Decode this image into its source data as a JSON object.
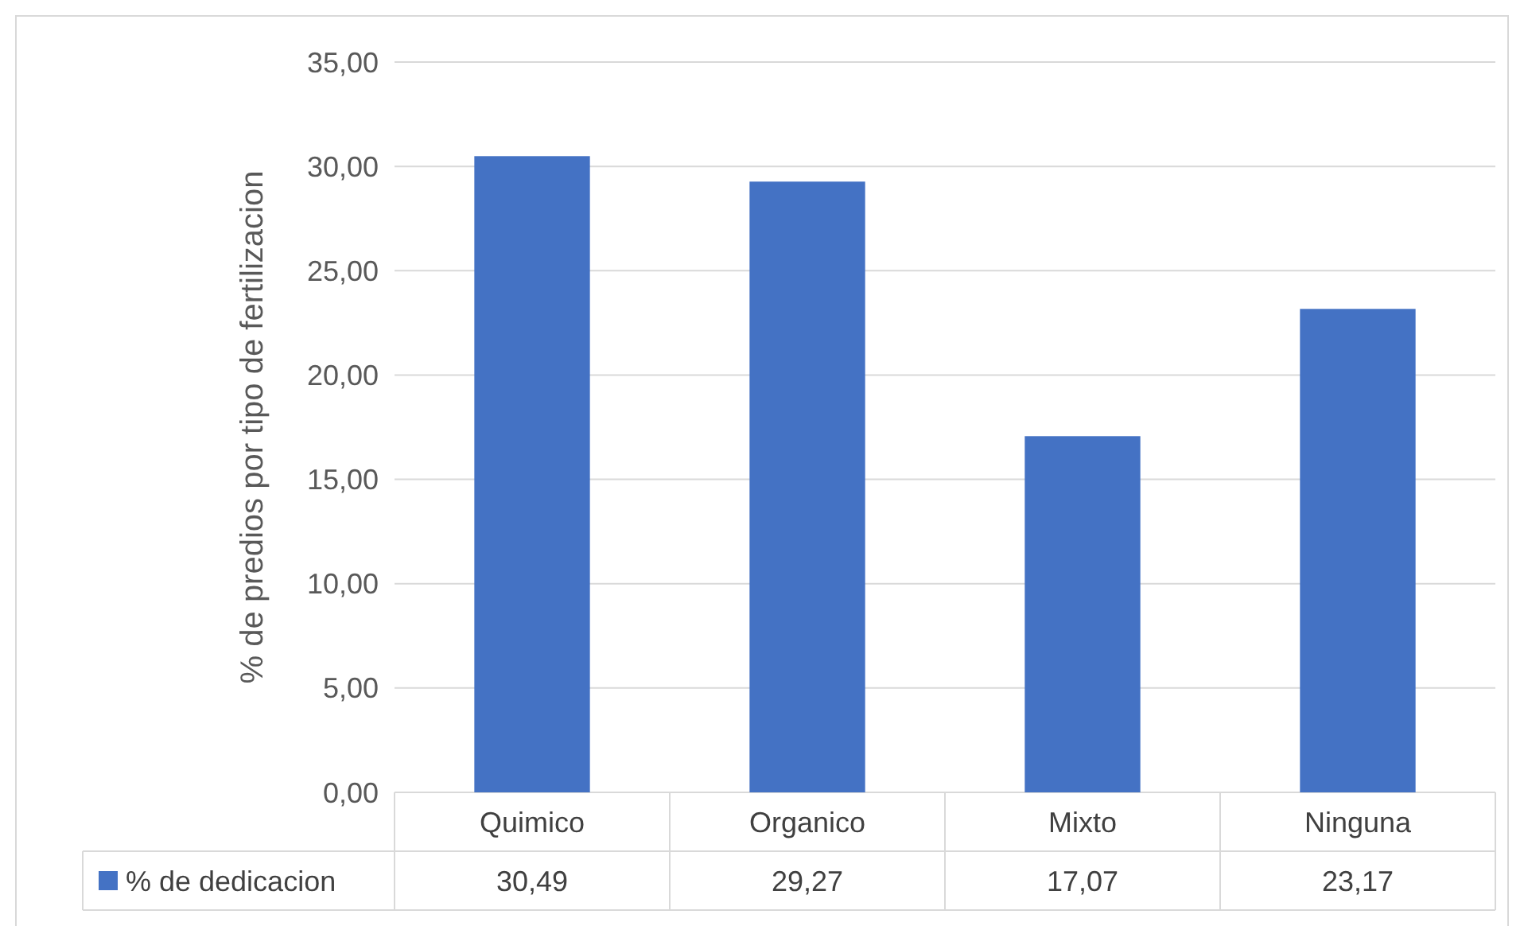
{
  "chart_data": {
    "type": "bar",
    "ylabel": "% de predios por tipo de fertilizacion",
    "categories": [
      "Quimico",
      "Organico",
      "Mixto",
      "Ninguna"
    ],
    "series": [
      {
        "name": "% de dedicacion",
        "color": "#4472c4",
        "values": [
          30.49,
          29.27,
          17.07,
          23.17
        ],
        "value_labels": [
          "30,49",
          "29,27",
          "17,07",
          "23,17"
        ]
      }
    ],
    "ylim": [
      0,
      35
    ],
    "yticks": [
      {
        "value": 0,
        "label": "0,00"
      },
      {
        "value": 5,
        "label": "5,00"
      },
      {
        "value": 10,
        "label": "10,00"
      },
      {
        "value": 15,
        "label": "15,00"
      },
      {
        "value": 20,
        "label": "20,00"
      },
      {
        "value": 25,
        "label": "25,00"
      },
      {
        "value": 30,
        "label": "30,00"
      },
      {
        "value": 35,
        "label": "35,00"
      }
    ],
    "grid": "y",
    "legend": "bottom"
  }
}
